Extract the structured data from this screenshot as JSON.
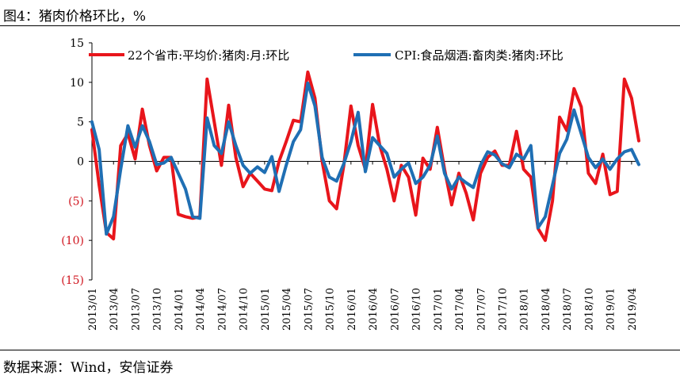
{
  "figure_title": "图4：猪肉价格环比，%",
  "source_text": "数据来源：Wind，安信证券",
  "colors": {
    "series1": "#e8151b",
    "series2": "#1f6fb4",
    "axis": "#000000",
    "neg_label": "#d0141e"
  },
  "chart_data": {
    "type": "line",
    "title": "",
    "xlabel": "",
    "ylabel": "",
    "ylim": [
      -15,
      15
    ],
    "y_ticks": [
      15,
      10,
      5,
      0,
      -5,
      -10,
      -15
    ],
    "y_tick_labels": [
      "15",
      "10",
      "5",
      "0",
      "(5)",
      "(10)",
      "(15)"
    ],
    "x_ticks": [
      "2013/01",
      "2013/04",
      "2013/07",
      "2013/10",
      "2014/01",
      "2014/04",
      "2014/07",
      "2014/10",
      "2015/01",
      "2015/04",
      "2015/07",
      "2015/10",
      "2016/01",
      "2016/04",
      "2016/07",
      "2016/10",
      "2017/01",
      "2017/04",
      "2017/07",
      "2017/10",
      "2018/01",
      "2018/04",
      "2018/07",
      "2018/10",
      "2019/01",
      "2019/04"
    ],
    "legend_position": "top",
    "series": [
      {
        "name": "22个省市:平均价:猪肉:月:环比",
        "values": [
          4.0,
          -3.0,
          -9.0,
          -9.8,
          2.0,
          3.5,
          0.3,
          6.6,
          2.0,
          -1.2,
          0.5,
          0.5,
          -6.7,
          -7.0,
          -7.2,
          -7.0,
          10.4,
          5.0,
          -0.5,
          7.1,
          0.5,
          -3.2,
          -1.5,
          -2.5,
          -3.5,
          -3.7,
          0.0,
          2.5,
          5.2,
          5.0,
          11.3,
          8.0,
          0.0,
          -5.0,
          -6.0,
          -0.5,
          7.0,
          2.0,
          -1.0,
          7.2,
          2.0,
          -1.0,
          -5.0,
          -0.5,
          -2.0,
          -6.8,
          0.4,
          -1.0,
          4.3,
          -1.0,
          -5.5,
          -1.5,
          -4.0,
          -7.4,
          -1.5,
          0.5,
          1.3,
          -0.5,
          -0.5,
          3.8,
          -1.0,
          -2.0,
          -8.5,
          -10.0,
          -5.0,
          5.6,
          3.9,
          9.2,
          6.9,
          -1.5,
          -2.8,
          0.9,
          -4.2,
          -3.8,
          10.4,
          8.0,
          2.6
        ]
      },
      {
        "name": "CPI:食品烟酒:畜肉类:猪肉:环比",
        "values": [
          5.0,
          1.5,
          -9.2,
          -7.0,
          -1.0,
          4.5,
          1.8,
          4.5,
          2.5,
          -0.4,
          -0.2,
          0.5,
          -1.5,
          -3.5,
          -7.0,
          -7.2,
          5.5,
          2.0,
          1.0,
          5.0,
          2.0,
          -0.5,
          -1.5,
          -0.7,
          -1.4,
          0.6,
          -3.8,
          -0.5,
          2.5,
          4.0,
          9.9,
          7.0,
          0.5,
          -2.0,
          -2.5,
          -0.3,
          2.5,
          6.2,
          -1.3,
          3.0,
          2.0,
          1.0,
          -2.0,
          -1.0,
          -0.2,
          -2.8,
          -2.0,
          -0.5,
          3.2,
          -1.5,
          -3.5,
          -2.0,
          -2.7,
          -3.3,
          -0.5,
          1.2,
          0.8,
          -0.3,
          -0.8,
          0.9,
          0.3,
          2.0,
          -8.4,
          -7.0,
          -3.0,
          1.0,
          2.8,
          6.5,
          3.5,
          0.5,
          -0.8,
          0.3,
          -1.0,
          0.3,
          1.2,
          1.5,
          -0.4
        ]
      }
    ]
  }
}
